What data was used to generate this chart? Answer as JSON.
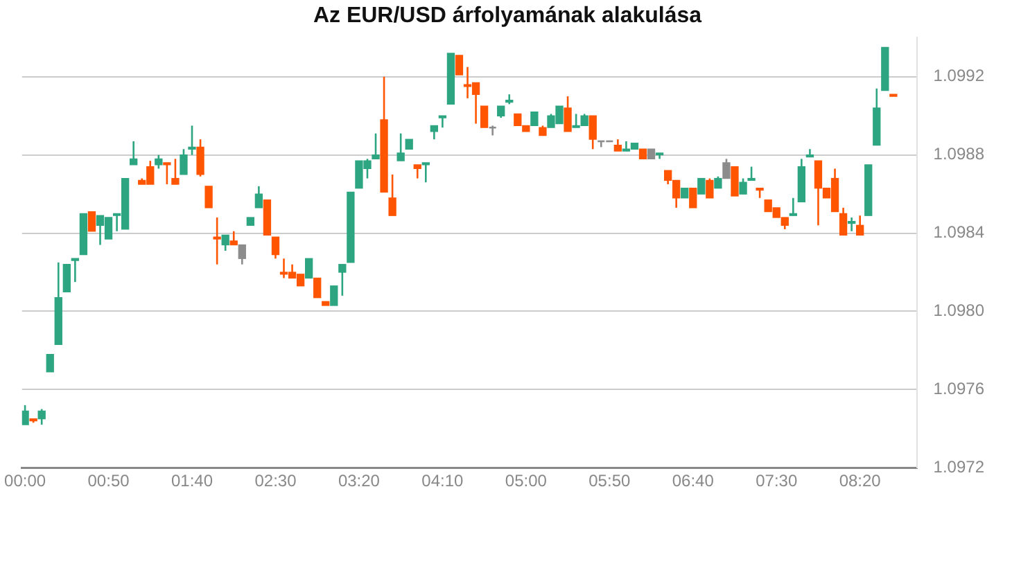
{
  "chart_data": {
    "type": "candlestick",
    "title": "Az EUR/USD árfolyamának alakulása",
    "x": [
      0,
      0.0833,
      0.1667,
      0.25,
      0.3333,
      0.4167,
      0.5,
      0.5833,
      0.6667,
      0.75,
      0.8333,
      0.9167,
      1,
      1.0833,
      1.1667,
      1.25,
      1.3333,
      1.4167,
      1.5,
      1.5833,
      1.6667,
      1.75,
      1.8333,
      1.9167,
      2,
      2.0833,
      2.1667,
      2.25,
      2.3333,
      2.4167,
      2.5,
      2.5833,
      2.6667,
      2.75,
      2.8333,
      2.9167,
      3,
      3.0833,
      3.1667,
      3.25,
      3.3333,
      3.4167,
      3.5,
      3.5833,
      3.6667,
      3.75,
      3.8333,
      3.9167,
      4,
      4.0833,
      4.1667,
      4.25,
      4.3333,
      4.4167,
      4.5,
      4.5833,
      4.6667,
      4.75,
      4.8333,
      4.9167,
      5,
      5.0833,
      5.1667,
      5.25,
      5.3333,
      5.4167,
      5.5,
      5.5833,
      5.6667,
      5.75,
      5.8333,
      5.9167,
      6,
      6.0833,
      6.1667,
      6.25,
      6.3333,
      6.4167,
      6.5,
      6.5833,
      6.6667,
      6.75,
      6.8333,
      6.9167,
      7,
      7.0833,
      7.1667,
      7.25,
      7.3333,
      7.4167,
      7.5,
      7.5833,
      7.6667,
      7.75,
      7.8333,
      7.9167,
      8,
      8.0833,
      8.1667,
      8.25,
      8.3333,
      8.4167,
      8.5,
      8.5833,
      8.6667
    ],
    "ohlc": [
      [
        1.09742,
        1.09752,
        1.09742,
        1.09749
      ],
      [
        1.09745,
        1.09745,
        1.09743,
        1.09744
      ],
      [
        1.09745,
        1.0975,
        1.09742,
        1.09749
      ],
      [
        1.09769,
        1.09778,
        1.09769,
        1.09778
      ],
      [
        1.09783,
        1.09825,
        1.09783,
        1.09807
      ],
      [
        1.0981,
        1.09824,
        1.0981,
        1.09824
      ],
      [
        1.09826,
        1.09827,
        1.09815,
        1.09827
      ],
      [
        1.09829,
        1.0985,
        1.09829,
        1.0985
      ],
      [
        1.09851,
        1.09851,
        1.09841,
        1.09841
      ],
      [
        1.09844,
        1.09849,
        1.09834,
        1.09849
      ],
      [
        1.09837,
        1.09848,
        1.09837,
        1.09848
      ],
      [
        1.09849,
        1.0985,
        1.09841,
        1.0985
      ],
      [
        1.09842,
        1.09868,
        1.09842,
        1.09868
      ],
      [
        1.09875,
        1.09887,
        1.09875,
        1.09878
      ],
      [
        1.09867,
        1.09868,
        1.09865,
        1.09865
      ],
      [
        1.09874,
        1.09877,
        1.09865,
        1.09865
      ],
      [
        1.09875,
        1.0988,
        1.09873,
        1.09878
      ],
      [
        1.09876,
        1.09876,
        1.09865,
        1.09875
      ],
      [
        1.09868,
        1.09878,
        1.09865,
        1.09865
      ],
      [
        1.0987,
        1.09883,
        1.0987,
        1.0988
      ],
      [
        1.09883,
        1.09895,
        1.0988,
        1.09884
      ],
      [
        1.09884,
        1.09888,
        1.09869,
        1.0987
      ],
      [
        1.09864,
        1.09864,
        1.09853,
        1.09853
      ],
      [
        1.09838,
        1.09848,
        1.09824,
        1.09837
      ],
      [
        1.09834,
        1.09839,
        1.09831,
        1.09839
      ],
      [
        1.09836,
        1.09841,
        1.09834,
        1.09834
      ],
      [
        1.09834,
        1.09834,
        1.09824,
        1.09827
      ],
      [
        1.09844,
        1.09848,
        1.09844,
        1.09848
      ],
      [
        1.09853,
        1.09864,
        1.09853,
        1.0986
      ],
      [
        1.09857,
        1.09857,
        1.09839,
        1.09839
      ],
      [
        1.09838,
        1.09838,
        1.09827,
        1.09829
      ],
      [
        1.0982,
        1.09827,
        1.09817,
        1.09819
      ],
      [
        1.0982,
        1.09824,
        1.09817,
        1.09817
      ],
      [
        1.09819,
        1.09819,
        1.09813,
        1.09813
      ],
      [
        1.09817,
        1.09827,
        1.09817,
        1.09827
      ],
      [
        1.09817,
        1.09817,
        1.09807,
        1.09807
      ],
      [
        1.09805,
        1.09805,
        1.09803,
        1.09803
      ],
      [
        1.09803,
        1.09813,
        1.09803,
        1.09813
      ],
      [
        1.0982,
        1.09824,
        1.09808,
        1.09824
      ],
      [
        1.09825,
        1.09861,
        1.09825,
        1.09861
      ],
      [
        1.09863,
        1.09877,
        1.09863,
        1.09877
      ],
      [
        1.09873,
        1.09878,
        1.09868,
        1.09877
      ],
      [
        1.09878,
        1.09891,
        1.09878,
        1.0988
      ],
      [
        1.09898,
        1.0992,
        1.09861,
        1.09861
      ],
      [
        1.09858,
        1.0987,
        1.09849,
        1.09849
      ],
      [
        1.09877,
        1.09891,
        1.09877,
        1.09881
      ],
      [
        1.09883,
        1.09888,
        1.09883,
        1.09888
      ],
      [
        1.09875,
        1.09875,
        1.09868,
        1.09873
      ],
      [
        1.09875,
        1.09876,
        1.09866,
        1.09876
      ],
      [
        1.09892,
        1.09895,
        1.09888,
        1.09895
      ],
      [
        1.09899,
        1.099,
        1.09894,
        1.099
      ],
      [
        1.09906,
        1.09932,
        1.09906,
        1.09932
      ],
      [
        1.09931,
        1.09931,
        1.09921,
        1.09921
      ],
      [
        1.09916,
        1.09925,
        1.09909,
        1.09915
      ],
      [
        1.09917,
        1.09917,
        1.09896,
        1.09911
      ],
      [
        1.09905,
        1.09905,
        1.09894,
        1.09894
      ],
      [
        1.09894,
        1.09895,
        1.0989,
        1.09894
      ],
      [
        1.099,
        1.09905,
        1.09899,
        1.09905
      ],
      [
        1.09907,
        1.09911,
        1.09906,
        1.09908
      ],
      [
        1.09901,
        1.09901,
        1.09895,
        1.09895
      ],
      [
        1.09895,
        1.09895,
        1.09892,
        1.09892
      ],
      [
        1.09895,
        1.09902,
        1.09895,
        1.09902
      ],
      [
        1.09894,
        1.09895,
        1.0989,
        1.0989
      ],
      [
        1.09894,
        1.09901,
        1.09894,
        1.099
      ],
      [
        1.09896,
        1.09905,
        1.09896,
        1.09905
      ],
      [
        1.09904,
        1.0991,
        1.09892,
        1.09892
      ],
      [
        1.09894,
        1.09901,
        1.09894,
        1.09895
      ],
      [
        1.09895,
        1.09901,
        1.09895,
        1.099
      ],
      [
        1.099,
        1.099,
        1.09883,
        1.09888
      ],
      [
        1.09887,
        1.09887,
        1.09884,
        1.09887
      ],
      [
        1.09887,
        1.09887,
        1.09887,
        1.09887
      ],
      [
        1.09885,
        1.09888,
        1.09882,
        1.09882
      ],
      [
        1.09882,
        1.09887,
        1.09882,
        1.09883
      ],
      [
        1.09883,
        1.09886,
        1.09883,
        1.09886
      ],
      [
        1.09883,
        1.09883,
        1.09878,
        1.09878
      ],
      [
        1.09883,
        1.09883,
        1.09878,
        1.09878
      ],
      [
        1.0988,
        1.09881,
        1.09878,
        1.09881
      ],
      [
        1.09872,
        1.09872,
        1.09865,
        1.09867
      ],
      [
        1.09867,
        1.09867,
        1.09853,
        1.09858
      ],
      [
        1.09858,
        1.09863,
        1.09858,
        1.09863
      ],
      [
        1.09863,
        1.09863,
        1.09853,
        1.09853
      ],
      [
        1.0986,
        1.09868,
        1.0986,
        1.09868
      ],
      [
        1.09867,
        1.09868,
        1.09858,
        1.09858
      ],
      [
        1.09863,
        1.09869,
        1.09863,
        1.09868
      ],
      [
        1.09868,
        1.09878,
        1.09868,
        1.09876
      ],
      [
        1.09874,
        1.09874,
        1.09859,
        1.09859
      ],
      [
        1.0986,
        1.09868,
        1.0986,
        1.09866
      ],
      [
        1.09867,
        1.09874,
        1.09867,
        1.09868
      ],
      [
        1.09863,
        1.09863,
        1.09858,
        1.09862
      ],
      [
        1.09857,
        1.09857,
        1.09851,
        1.09851
      ],
      [
        1.09853,
        1.09853,
        1.09848,
        1.09848
      ],
      [
        1.09848,
        1.09848,
        1.09842,
        1.09844
      ],
      [
        1.09849,
        1.09858,
        1.09849,
        1.0985
      ],
      [
        1.09856,
        1.09878,
        1.09856,
        1.09874
      ],
      [
        1.09879,
        1.09883,
        1.09879,
        1.0988
      ],
      [
        1.09877,
        1.09877,
        1.09844,
        1.09863
      ],
      [
        1.09863,
        1.09863,
        1.09858,
        1.09858
      ],
      [
        1.09868,
        1.09873,
        1.09851,
        1.09851
      ],
      [
        1.0985,
        1.09853,
        1.09839,
        1.09839
      ],
      [
        1.09845,
        1.09848,
        1.09841,
        1.09846
      ],
      [
        1.09844,
        1.09849,
        1.09839,
        1.09839
      ],
      [
        1.09849,
        1.09875,
        1.09849,
        1.09875
      ],
      [
        1.09885,
        1.09914,
        1.09885,
        1.09904
      ],
      [
        1.09913,
        1.09935,
        1.09913,
        1.09935
      ],
      [
        1.09911,
        1.09911,
        1.0991,
        1.0991
      ]
    ],
    "colors": [
      "#2ca580",
      "#ff5500",
      "#2ca580",
      "#2ca580",
      "#2ca580",
      "#2ca580",
      "#2ca580",
      "#2ca580",
      "#ff5500",
      "#2ca580",
      "#2ca580",
      "#2ca580",
      "#2ca580",
      "#2ca580",
      "#ff5500",
      "#ff5500",
      "#2ca580",
      "#ff5500",
      "#ff5500",
      "#2ca580",
      "#2ca580",
      "#ff5500",
      "#ff5500",
      "#ff5500",
      "#2ca580",
      "#ff5500",
      "#8c8c8c",
      "#2ca580",
      "#2ca580",
      "#ff5500",
      "#ff5500",
      "#ff5500",
      "#ff5500",
      "#ff5500",
      "#2ca580",
      "#ff5500",
      "#ff5500",
      "#2ca580",
      "#2ca580",
      "#2ca580",
      "#2ca580",
      "#2ca580",
      "#2ca580",
      "#ff5500",
      "#ff5500",
      "#2ca580",
      "#2ca580",
      "#ff5500",
      "#2ca580",
      "#2ca580",
      "#2ca580",
      "#2ca580",
      "#ff5500",
      "#ff5500",
      "#ff5500",
      "#ff5500",
      "#8c8c8c",
      "#2ca580",
      "#2ca580",
      "#ff5500",
      "#ff5500",
      "#2ca580",
      "#ff5500",
      "#2ca580",
      "#2ca580",
      "#ff5500",
      "#2ca580",
      "#2ca580",
      "#ff5500",
      "#8c8c8c",
      "#8c8c8c",
      "#ff5500",
      "#2ca580",
      "#2ca580",
      "#ff5500",
      "#8c8c8c",
      "#2ca580",
      "#ff5500",
      "#ff5500",
      "#2ca580",
      "#ff5500",
      "#2ca580",
      "#ff5500",
      "#2ca580",
      "#8c8c8c",
      "#ff5500",
      "#2ca580",
      "#2ca580",
      "#ff5500",
      "#ff5500",
      "#ff5500",
      "#ff5500",
      "#2ca580",
      "#2ca580",
      "#2ca580",
      "#ff5500",
      "#ff5500",
      "#ff5500",
      "#ff5500",
      "#2ca580",
      "#ff5500",
      "#2ca580",
      "#2ca580",
      "#2ca580",
      "#ff5500"
    ],
    "xlim": [
      -0.03,
      8.9
    ],
    "xticks": [
      {
        "value": 0,
        "label": "00:00"
      },
      {
        "value": 0.8333,
        "label": "00:50"
      },
      {
        "value": 1.6667,
        "label": "01:40"
      },
      {
        "value": 2.5,
        "label": "02:30"
      },
      {
        "value": 3.3333,
        "label": "03:20"
      },
      {
        "value": 4.1667,
        "label": "04:10"
      },
      {
        "value": 5,
        "label": "05:00"
      },
      {
        "value": 5.8333,
        "label": "05:50"
      },
      {
        "value": 6.6667,
        "label": "06:40"
      },
      {
        "value": 7.5,
        "label": "07:30"
      },
      {
        "value": 8.3333,
        "label": "08:20"
      }
    ],
    "ylim": [
      1.0972,
      1.0994
    ],
    "yticks": [
      1.0972,
      1.0976,
      {
        "value": 1.098,
        "label": "1.0980"
      },
      1.0984,
      1.0988,
      1.0992
    ],
    "grid": "y"
  }
}
